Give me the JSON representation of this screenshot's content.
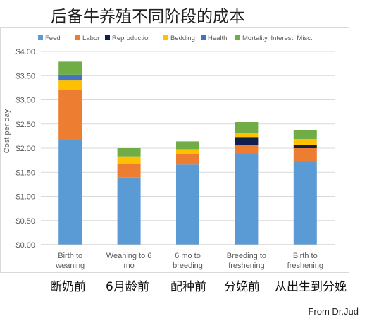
{
  "title": "后备牛养殖不同阶段的成本",
  "credit": "From Dr.Jud",
  "colors": {
    "Feed": "#5b9bd5",
    "Labor": "#ed7d31",
    "Reproduction": "#0d1f4a",
    "Bedding": "#ffc000",
    "Health": "#4472c4",
    "Mortality, Interest, Misc.": "#70ad47"
  },
  "chinese_labels": [
    "断奶前",
    "6月龄前",
    "配种前",
    "分娩前",
    "从出生到分娩"
  ],
  "chart_data": {
    "type": "bar",
    "stacked": true,
    "title": "",
    "xlabel": "",
    "ylabel": "Cost per day",
    "ylim": [
      0,
      4
    ],
    "y_ticks": [
      "$0.00",
      "$0.50",
      "$1.00",
      "$1.50",
      "$2.00",
      "$2.50",
      "$3.00",
      "$3.50",
      "$4.00"
    ],
    "grid": true,
    "legend_position": "top",
    "categories": [
      [
        "Birth to",
        "weaning"
      ],
      [
        "Weaning to 6",
        "mo"
      ],
      [
        "6 mo to",
        "breeding"
      ],
      [
        "Breeding to",
        "freshening"
      ],
      [
        "Birth to",
        "freshening"
      ]
    ],
    "series": [
      {
        "name": "Feed",
        "values": [
          2.17,
          1.39,
          1.66,
          1.89,
          1.73
        ]
      },
      {
        "name": "Labor",
        "values": [
          1.03,
          0.28,
          0.22,
          0.18,
          0.27
        ]
      },
      {
        "name": "Reproduction",
        "values": [
          0.0,
          0.0,
          0.0,
          0.16,
          0.07
        ]
      },
      {
        "name": "Bedding",
        "values": [
          0.2,
          0.16,
          0.1,
          0.08,
          0.12
        ]
      },
      {
        "name": "Health",
        "values": [
          0.12,
          0.0,
          0.0,
          0.0,
          0.0
        ]
      },
      {
        "name": "Mortality, Interest, Misc.",
        "values": [
          0.27,
          0.17,
          0.16,
          0.23,
          0.18
        ]
      }
    ]
  }
}
